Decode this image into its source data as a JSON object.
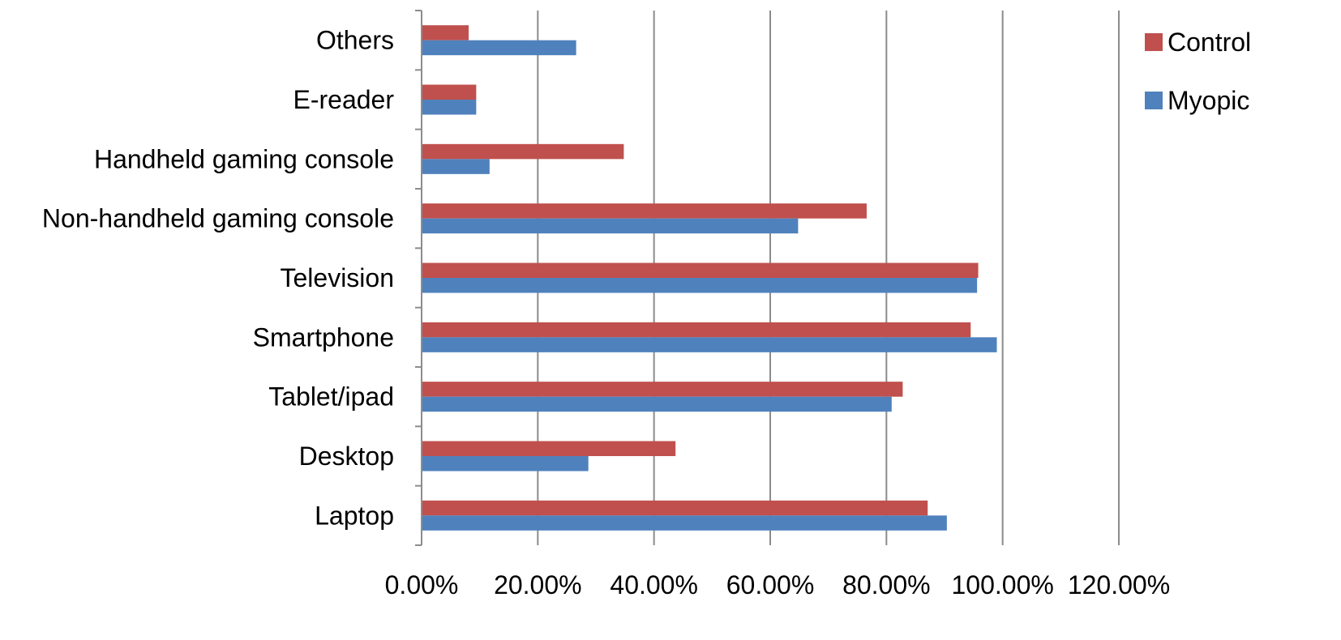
{
  "chart_data": {
    "type": "bar",
    "orientation": "horizontal",
    "categories": [
      "Others",
      "E-reader",
      "Handheld gaming console",
      "Non-handheld gaming console",
      "Television",
      "Smartphone",
      "Tablet/ipad",
      "Desktop",
      "Laptop"
    ],
    "series": [
      {
        "name": "Control",
        "color": "#c0504d",
        "values": [
          8.1,
          9.4,
          34.8,
          76.6,
          95.8,
          94.5,
          82.8,
          43.7,
          87.1
        ]
      },
      {
        "name": "Myopic",
        "color": "#4f81bd",
        "values": [
          26.6,
          9.4,
          11.7,
          64.8,
          95.6,
          99.0,
          80.9,
          28.7,
          90.4
        ]
      }
    ],
    "x_ticks": [
      "0.00%",
      "20.00%",
      "40.00%",
      "60.00%",
      "80.00%",
      "100.00%",
      "120.00%"
    ],
    "x_tick_values": [
      0,
      20,
      40,
      60,
      80,
      100,
      120
    ],
    "xlim": [
      0,
      120
    ],
    "grid": true,
    "legend_position": "top-right",
    "title": "",
    "xlabel": "",
    "ylabel": ""
  }
}
